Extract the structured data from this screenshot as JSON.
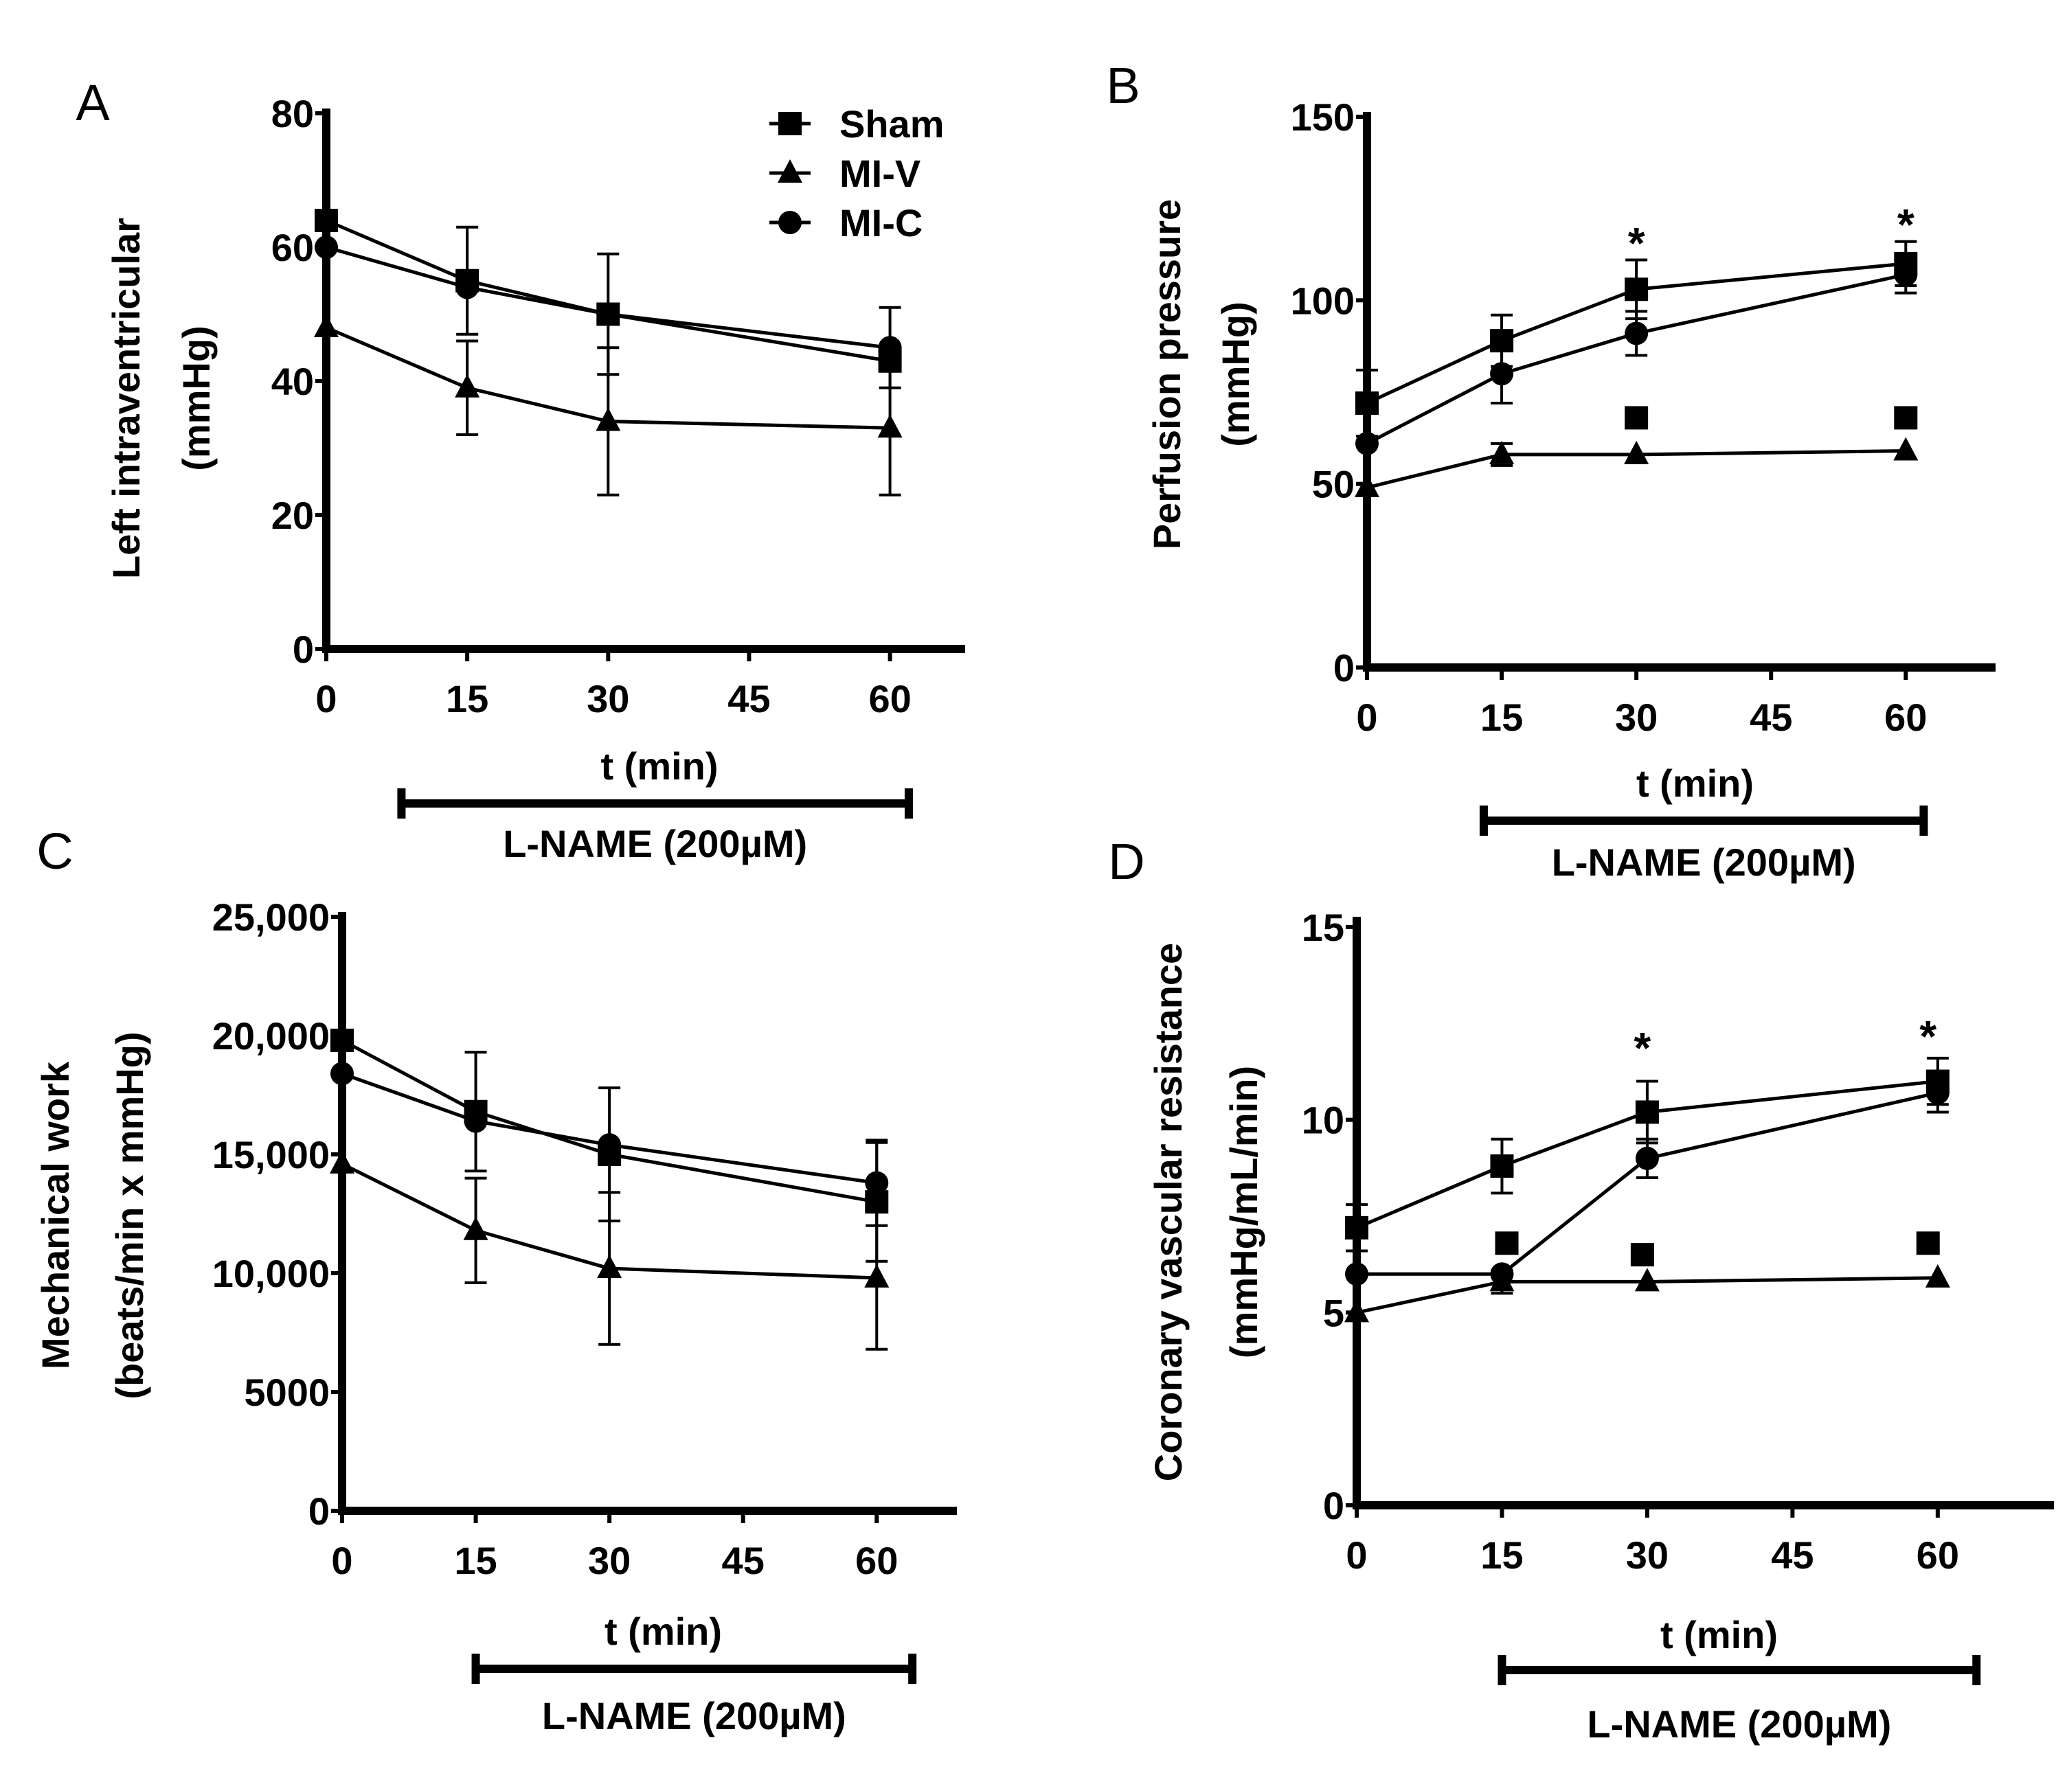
{
  "chart_data": [
    {
      "panel": "A",
      "type": "line",
      "ylabel_lines": [
        "Left intraventricular",
        "(mmHg)"
      ],
      "xlabel": "t (min)",
      "treatment_label": "L-NAME (200µM)",
      "treatment_range": [
        8,
        62
      ],
      "xlim": [
        0,
        68
      ],
      "ylim": [
        0,
        80
      ],
      "xticks": [
        0,
        15,
        30,
        45,
        60
      ],
      "yticks": [
        0,
        20,
        40,
        60,
        80
      ],
      "ytick_labels": [
        "0",
        "20",
        "40",
        "60",
        "80"
      ],
      "legend": [
        {
          "name": "Sham",
          "marker": "square"
        },
        {
          "name": "MI-V",
          "marker": "triangle"
        },
        {
          "name": "MI-C",
          "marker": "circle"
        }
      ],
      "series": [
        {
          "name": "Sham",
          "marker": "square",
          "x": [
            0,
            15,
            30,
            60
          ],
          "y": [
            64,
            55,
            50,
            43
          ],
          "err": [
            0,
            8,
            9,
            0
          ]
        },
        {
          "name": "MI-V",
          "marker": "triangle",
          "x": [
            0,
            15,
            30,
            60
          ],
          "y": [
            48,
            39,
            34,
            33
          ],
          "err": [
            0,
            7,
            11,
            10
          ]
        },
        {
          "name": "MI-C",
          "marker": "circle",
          "x": [
            0,
            15,
            30,
            60
          ],
          "y": [
            60,
            54,
            50,
            45
          ],
          "err": [
            0,
            0,
            0,
            6
          ]
        }
      ],
      "extra_markers": [],
      "stars": []
    },
    {
      "panel": "B",
      "type": "line",
      "ylabel_lines": [
        "Perfusion pressure",
        "(mmHg)"
      ],
      "xlabel": "t (min)",
      "treatment_label": "L-NAME (200µM)",
      "treatment_range": [
        13,
        62
      ],
      "xlim": [
        0,
        70
      ],
      "ylim": [
        0,
        150
      ],
      "xticks": [
        0,
        15,
        30,
        45,
        60
      ],
      "yticks": [
        0,
        50,
        100,
        150
      ],
      "ytick_labels": [
        "0",
        "50",
        "100",
        "150"
      ],
      "legend": [],
      "series": [
        {
          "name": "Sham",
          "marker": "square",
          "x": [
            0,
            15,
            30,
            60
          ],
          "y": [
            72,
            89,
            103,
            110
          ],
          "err": [
            9,
            7,
            8,
            6
          ]
        },
        {
          "name": "MI-V",
          "marker": "triangle",
          "x": [
            0,
            15,
            30,
            60
          ],
          "y": [
            49,
            58,
            58,
            59
          ],
          "err": [
            0,
            3,
            0,
            0
          ]
        },
        {
          "name": "MI-C",
          "marker": "circle",
          "x": [
            0,
            15,
            30,
            60
          ],
          "y": [
            61,
            80,
            91,
            107
          ],
          "err": [
            0,
            8,
            6,
            5
          ]
        }
      ],
      "extra_markers": [
        {
          "marker": "square",
          "x": 30,
          "y": 68
        },
        {
          "marker": "square",
          "x": 60,
          "y": 68
        }
      ],
      "stars": [
        {
          "x": 30,
          "y": 116,
          "text": "*"
        },
        {
          "x": 60,
          "y": 121,
          "text": "*"
        }
      ]
    },
    {
      "panel": "C",
      "type": "line",
      "ylabel_lines": [
        "Mechanical work",
        "(beats/min x mmHg)"
      ],
      "xlabel": "t (min)",
      "treatment_label": "L-NAME (200µM)",
      "treatment_range": [
        15,
        64
      ],
      "xlim": [
        0,
        69
      ],
      "ylim": [
        0,
        25000
      ],
      "xticks": [
        0,
        15,
        30,
        45,
        60
      ],
      "yticks": [
        0,
        5000,
        10000,
        15000,
        20000,
        25000
      ],
      "ytick_labels": [
        "0",
        "5000",
        "10,000",
        "15,000",
        "20,000",
        "25,000"
      ],
      "legend": [],
      "series": [
        {
          "name": "Sham",
          "marker": "square",
          "x": [
            0,
            15,
            30,
            60
          ],
          "y": [
            19800,
            16800,
            15000,
            13000
          ],
          "err": [
            0,
            2500,
            2800,
            2500
          ]
        },
        {
          "name": "MI-V",
          "marker": "triangle",
          "x": [
            0,
            15,
            30,
            60
          ],
          "y": [
            14600,
            11800,
            10200,
            9800
          ],
          "err": [
            0,
            2200,
            3200,
            3000
          ]
        },
        {
          "name": "MI-C",
          "marker": "circle",
          "x": [
            0,
            15,
            30,
            60
          ],
          "y": [
            18400,
            16400,
            15400,
            13800
          ],
          "err": [
            0,
            0,
            0,
            1800
          ]
        }
      ],
      "extra_markers": [],
      "stars": []
    },
    {
      "panel": "D",
      "type": "line",
      "ylabel_lines": [
        "Coronary vascular resistance",
        "(mmHg/mL/min)"
      ],
      "xlabel": "t (min)",
      "treatment_label": "L-NAME (200µM)",
      "treatment_range": [
        15,
        64
      ],
      "xlim": [
        0,
        72
      ],
      "ylim": [
        0,
        15
      ],
      "xticks": [
        0,
        15,
        30,
        45,
        60
      ],
      "yticks": [
        0,
        5,
        10,
        15
      ],
      "ytick_labels": [
        "0",
        "5",
        "10",
        "15"
      ],
      "legend": [],
      "series": [
        {
          "name": "Sham",
          "marker": "square",
          "x": [
            0,
            15,
            30,
            60
          ],
          "y": [
            7.2,
            8.8,
            10.2,
            11.0
          ],
          "err": [
            0.6,
            0.7,
            0.8,
            0.6
          ]
        },
        {
          "name": "MI-V",
          "marker": "triangle",
          "x": [
            0,
            15,
            30,
            60
          ],
          "y": [
            5.0,
            5.8,
            5.8,
            5.9
          ],
          "err": [
            0,
            0.3,
            0,
            0
          ]
        },
        {
          "name": "MI-C",
          "marker": "circle",
          "x": [
            0,
            15,
            30,
            60
          ],
          "y": [
            6.0,
            6.0,
            9.0,
            10.7
          ],
          "err": [
            0,
            0,
            0.5,
            0.5
          ]
        }
      ],
      "extra_markers": [
        {
          "marker": "square",
          "x": 15.5,
          "y": 6.8
        },
        {
          "marker": "square",
          "x": 29.5,
          "y": 6.5
        },
        {
          "marker": "square",
          "x": 59,
          "y": 6.8
        }
      ],
      "stars": [
        {
          "x": 29.5,
          "y": 11.9,
          "text": "*"
        },
        {
          "x": 59,
          "y": 12.2,
          "text": "*"
        }
      ]
    }
  ]
}
